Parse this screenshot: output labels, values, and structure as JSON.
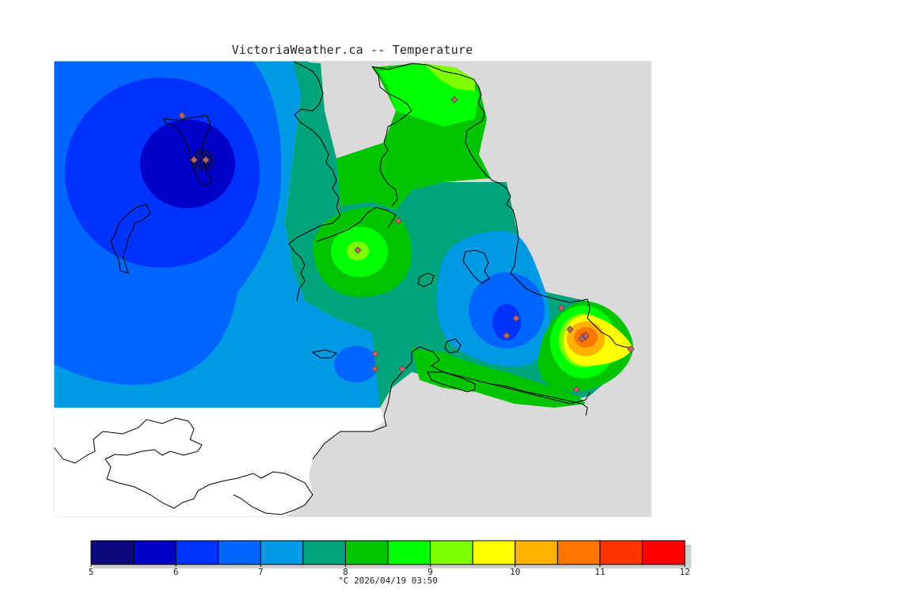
{
  "title": "VictoriaWeather.ca -- Temperature",
  "units": "°C",
  "timestamp": "2026/04/19 03:50",
  "caption": "°C  2026/04/19 03:50",
  "colors": {
    "land_background": "#dadada",
    "water": "#ffffff",
    "coast": "#000000",
    "station_fill": "#d06060",
    "station_edge": "#555555"
  },
  "legend": {
    "min": 5,
    "max": 12,
    "tick_labels": [
      "5",
      "6",
      "7",
      "8",
      "9",
      "10",
      "11",
      "12"
    ],
    "bins": [
      {
        "from": 5.0,
        "to": 5.5,
        "color": "#0b0a80"
      },
      {
        "from": 5.5,
        "to": 6.0,
        "color": "#0000c8"
      },
      {
        "from": 6.0,
        "to": 6.5,
        "color": "#0033ff"
      },
      {
        "from": 6.5,
        "to": 7.0,
        "color": "#0066ff"
      },
      {
        "from": 7.0,
        "to": 7.5,
        "color": "#0099e6"
      },
      {
        "from": 7.5,
        "to": 8.0,
        "color": "#00a37a"
      },
      {
        "from": 8.0,
        "to": 8.5,
        "color": "#00c400"
      },
      {
        "from": 8.5,
        "to": 9.0,
        "color": "#00ff00"
      },
      {
        "from": 9.0,
        "to": 9.5,
        "color": "#7dff00"
      },
      {
        "from": 9.5,
        "to": 10.0,
        "color": "#ffff00"
      },
      {
        "from": 10.0,
        "to": 10.5,
        "color": "#ffb300"
      },
      {
        "from": 10.5,
        "to": 11.0,
        "color": "#ff7700"
      },
      {
        "from": 11.0,
        "to": 11.5,
        "color": "#ff3300"
      },
      {
        "from": 11.5,
        "to": 12.0,
        "color": "#ff0000"
      }
    ]
  }
}
